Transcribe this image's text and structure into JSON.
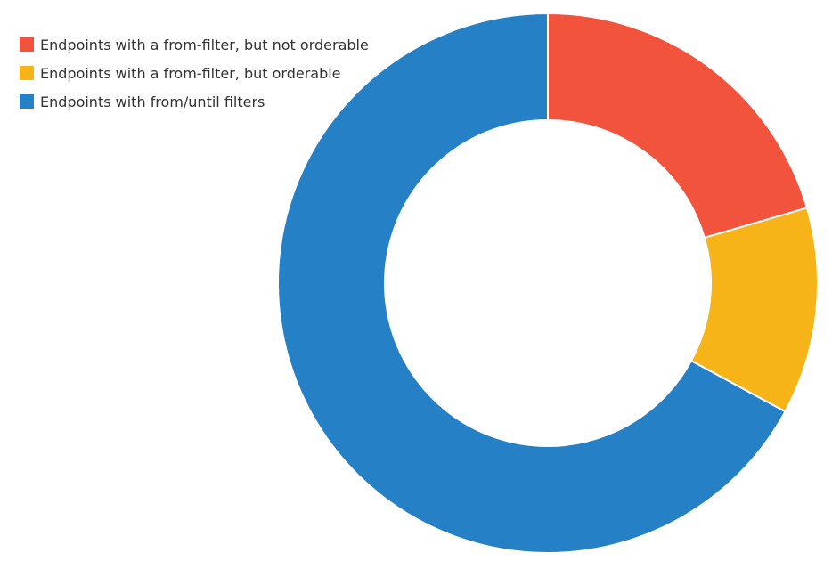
{
  "chart_data": {
    "type": "pie",
    "donut": true,
    "legend_position": "top-left",
    "slices": [
      {
        "label": "Endpoints with a from-filter, but not orderable",
        "value": 20.5,
        "color": "#f1533d"
      },
      {
        "label": "Endpoints with a from-filter, but orderable",
        "value": 12.4,
        "color": "#f7b418"
      },
      {
        "label": "Endpoints with from/until filters",
        "value": 67.1,
        "color": "#2580c5"
      }
    ]
  }
}
